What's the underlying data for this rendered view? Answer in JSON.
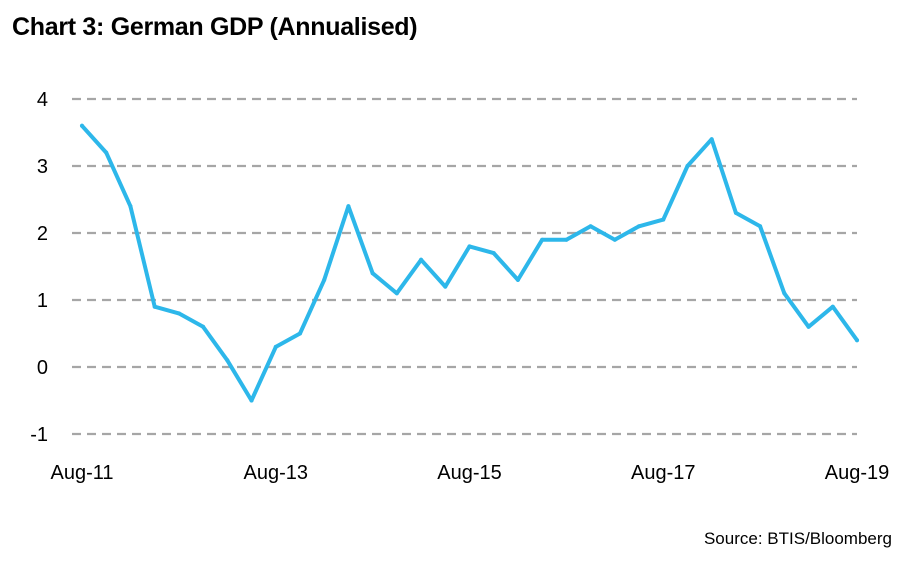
{
  "title": "Chart 3: German GDP (Annualised)",
  "source": "Source: BTIS/Bloomberg",
  "colors": {
    "line": "#2db7ea",
    "grid": "#a6a6a6"
  },
  "chart_data": {
    "type": "line",
    "title": "Chart 3: German GDP (Annualised)",
    "xlabel": "",
    "ylabel": "",
    "ylim": [
      -1,
      4
    ],
    "yticks": [
      4,
      3,
      2,
      1,
      0,
      -1
    ],
    "xticks": [
      "Aug-11",
      "Aug-13",
      "Aug-15",
      "Aug-17",
      "Aug-19"
    ],
    "grid": true,
    "series": [
      {
        "name": "German GDP (Annualised)",
        "x": [
          "Aug-11",
          "Nov-11",
          "Feb-12",
          "May-12",
          "Aug-12",
          "Nov-12",
          "Feb-13",
          "May-13",
          "Aug-13",
          "Nov-13",
          "Feb-14",
          "May-14",
          "Aug-14",
          "Nov-14",
          "Feb-15",
          "May-15",
          "Aug-15",
          "Nov-15",
          "Feb-16",
          "May-16",
          "Aug-16",
          "Nov-16",
          "Feb-17",
          "May-17",
          "Aug-17",
          "Nov-17",
          "Feb-18",
          "May-18",
          "Aug-18",
          "Nov-18",
          "Feb-19",
          "May-19",
          "Aug-19"
        ],
        "values": [
          3.6,
          3.2,
          2.4,
          0.9,
          0.8,
          0.6,
          0.1,
          -0.5,
          0.3,
          0.5,
          1.3,
          2.4,
          1.4,
          1.1,
          1.6,
          1.2,
          1.8,
          1.7,
          1.3,
          1.9,
          1.9,
          2.1,
          1.9,
          2.1,
          2.2,
          3.0,
          3.4,
          2.3,
          2.1,
          1.1,
          0.6,
          0.9,
          0.4
        ]
      }
    ]
  }
}
